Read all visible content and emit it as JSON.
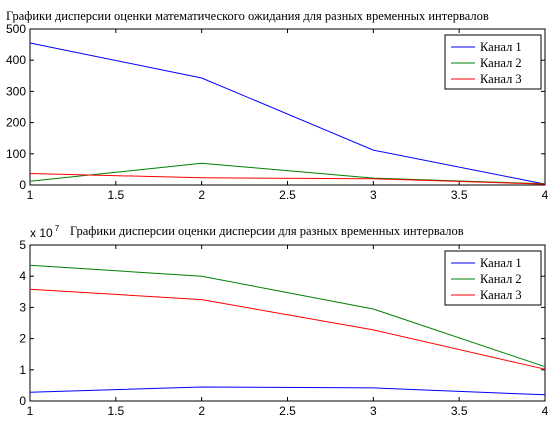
{
  "chart_data": [
    {
      "type": "line",
      "title": "Графики дисперсии оценки математического ожидания для разных временных интервалов",
      "x": [
        1,
        2,
        3,
        4
      ],
      "xlim": [
        1,
        4
      ],
      "ylim": [
        0,
        500
      ],
      "xticks": [
        "1",
        "1.5",
        "2",
        "2.5",
        "3",
        "3.5",
        "4"
      ],
      "yticks": [
        "0",
        "100",
        "200",
        "300",
        "400",
        "500"
      ],
      "legend_position": "top-right",
      "series": [
        {
          "name": "Канал 1",
          "color": "#0000ff",
          "values": [
            455,
            343,
            112,
            3
          ]
        },
        {
          "name": "Канал 2",
          "color": "#008000",
          "values": [
            12,
            70,
            22,
            4
          ]
        },
        {
          "name": "Канал 3",
          "color": "#ff0000",
          "values": [
            37,
            23,
            20,
            3
          ]
        }
      ]
    },
    {
      "type": "line",
      "title": "Графики дисперсии оценки дисперсии для разных временных интервалов",
      "y_exponent_base": "x 10",
      "y_exponent_power": "7",
      "x": [
        1,
        2,
        3,
        4
      ],
      "xlim": [
        1,
        4
      ],
      "ylim": [
        0,
        5
      ],
      "xticks": [
        "1",
        "1.5",
        "2",
        "2.5",
        "3",
        "3.5",
        "4"
      ],
      "yticks": [
        "0",
        "1",
        "2",
        "3",
        "4",
        "5"
      ],
      "legend_position": "top-right",
      "series": [
        {
          "name": "Канал 1",
          "color": "#0000ff",
          "values": [
            0.28,
            0.45,
            0.42,
            0.2
          ]
        },
        {
          "name": "Канал 2",
          "color": "#008000",
          "values": [
            4.35,
            4.0,
            2.95,
            1.1
          ]
        },
        {
          "name": "Канал 3",
          "color": "#ff0000",
          "values": [
            3.58,
            3.25,
            2.28,
            1.02
          ]
        }
      ]
    }
  ]
}
